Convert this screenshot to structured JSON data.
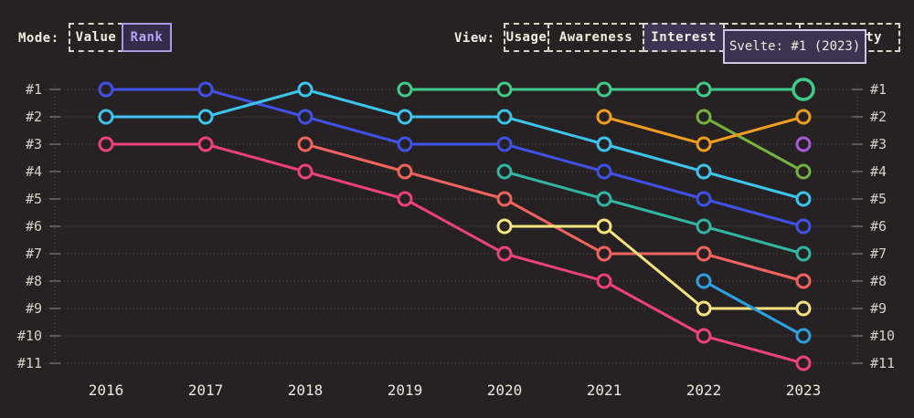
{
  "toolbar": {
    "mode": {
      "label": "Mode:",
      "options": [
        {
          "label": "Value",
          "active": false
        },
        {
          "label": "Rank",
          "active": true
        }
      ]
    },
    "view": {
      "label": "View:",
      "options": [
        {
          "label": "Usage",
          "active": false
        },
        {
          "label": "Awareness",
          "active": false
        },
        {
          "label": "Interest",
          "active": true
        },
        {
          "label": "",
          "active": false
        },
        {
          "label": "ty",
          "active": false
        }
      ]
    }
  },
  "tooltip": {
    "text": "Svelte: #1 (2023)"
  },
  "colors": {
    "background": "#262223",
    "grid": "#56504e",
    "tick": "#948e8a",
    "axis_text": "#d6d0c7",
    "year_text": "#ece6dd",
    "accent_active": "#b5a4f2"
  },
  "chart_data": {
    "type": "line",
    "subtype": "bump-rank",
    "x": [
      2016,
      2017,
      2018,
      2019,
      2020,
      2021,
      2022,
      2023
    ],
    "y_ticks": [
      "#1",
      "#2",
      "#3",
      "#4",
      "#5",
      "#6",
      "#7",
      "#8",
      "#9",
      "#10",
      "#11"
    ],
    "y_axis_note": "rank 1 at top, shown on both left and right sides",
    "grid": true,
    "series": [
      {
        "id": "indigo-line",
        "color": "#4150e6",
        "ranks": [
          1,
          1,
          2,
          3,
          3,
          4,
          5,
          6
        ]
      },
      {
        "id": "pink-line",
        "color": "#ed4179",
        "ranks": [
          3,
          3,
          4,
          5,
          7,
          8,
          10,
          11
        ]
      },
      {
        "id": "salmon-line",
        "color": "#f2625e",
        "ranks": [
          null,
          null,
          3,
          4,
          5,
          7,
          7,
          8
        ]
      },
      {
        "id": "cyan-line",
        "color": "#3cc4ec",
        "ranks": [
          2,
          2,
          1,
          2,
          2,
          3,
          4,
          5
        ]
      },
      {
        "id": "teal-line",
        "color": "#32b5a2",
        "ranks": [
          null,
          null,
          null,
          null,
          4,
          5,
          6,
          7
        ]
      },
      {
        "id": "yellow-line",
        "color": "#f5e37e",
        "ranks": [
          null,
          null,
          null,
          null,
          6,
          6,
          9,
          9
        ]
      },
      {
        "id": "sky-line",
        "color": "#2b9fe0",
        "ranks": [
          null,
          null,
          null,
          null,
          null,
          null,
          8,
          10
        ]
      },
      {
        "id": "olive-line",
        "color": "#74b13f",
        "ranks": [
          null,
          null,
          null,
          null,
          null,
          null,
          2,
          4
        ]
      },
      {
        "id": "amber-line",
        "color": "#ef9d20",
        "ranks": [
          null,
          null,
          null,
          null,
          null,
          2,
          3,
          2
        ]
      },
      {
        "id": "purple-line",
        "color": "#a95bd9",
        "ranks": [
          null,
          null,
          null,
          null,
          null,
          null,
          null,
          3
        ]
      },
      {
        "id": "svelte-line",
        "color": "#40ca87",
        "ranks": [
          null,
          null,
          null,
          1,
          1,
          1,
          1,
          1
        ],
        "highlight_last": true
      }
    ]
  }
}
